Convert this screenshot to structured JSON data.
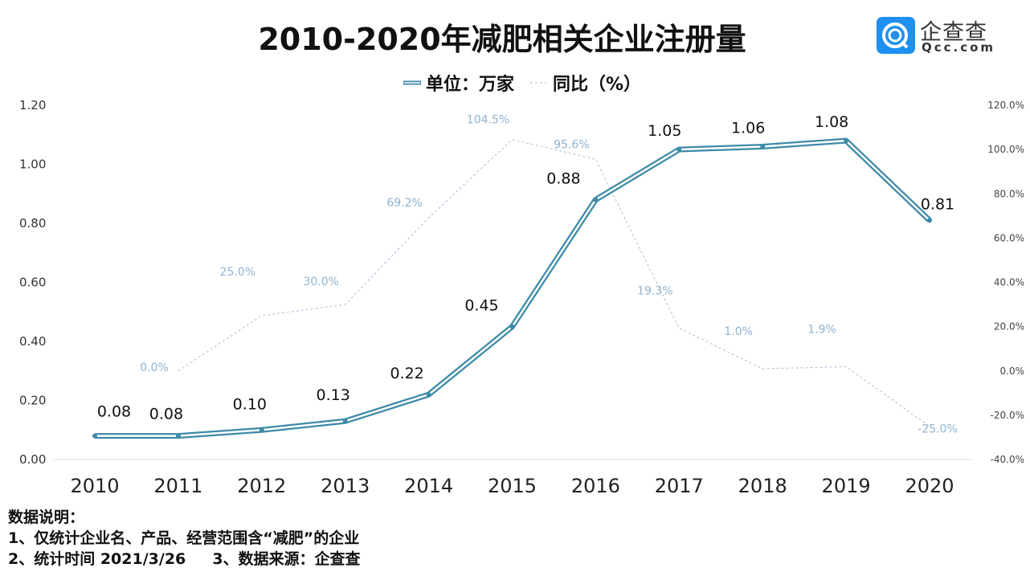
{
  "title": "2010-2020年减肥相关企业注册量",
  "logo": {
    "name": "企查查",
    "domain": "Qcc.com"
  },
  "colors": {
    "count": "#3d8aa8",
    "yoy": "#b8c6de",
    "yoy_label": "#8fb2d0"
  },
  "chart_data": {
    "type": "line",
    "categories": [
      "2010",
      "2011",
      "2012",
      "2013",
      "2014",
      "2015",
      "2016",
      "2017",
      "2018",
      "2019",
      "2020"
    ],
    "series": [
      {
        "name": "单位：万家",
        "axis": "left",
        "style": "double-solid",
        "values": [
          0.08,
          0.08,
          0.1,
          0.13,
          0.22,
          0.45,
          0.88,
          1.05,
          1.06,
          1.08,
          0.81
        ],
        "labels": [
          "0.08",
          "0.08",
          "0.10",
          "0.13",
          "0.22",
          "0.45",
          "0.88",
          "1.05",
          "1.06",
          "1.08",
          "0.81"
        ]
      },
      {
        "name": "同比（%）",
        "axis": "right",
        "style": "dashed",
        "values": [
          null,
          0.0,
          25.0,
          30.0,
          69.2,
          104.5,
          95.6,
          19.3,
          1.0,
          1.9,
          -25.0
        ],
        "labels": [
          "",
          "0.0%",
          "25.0%",
          "30.0%",
          "69.2%",
          "104.5%",
          "95.6%",
          "19.3%",
          "1.0%",
          "1.9%",
          "-25.0%"
        ]
      }
    ],
    "ylim": [
      0,
      1.2
    ],
    "yticks": [
      "0.00",
      "0.20",
      "0.40",
      "0.60",
      "0.80",
      "1.00",
      "1.20"
    ],
    "y2lim": [
      -40,
      120
    ],
    "y2ticks": [
      "-40.0%",
      "-20.0%",
      "0.0%",
      "20.0%",
      "40.0%",
      "60.0%",
      "80.0%",
      "100.0%",
      "120.0%"
    ],
    "grid": false,
    "legend": "top-center"
  },
  "notes": [
    "数据说明：",
    "1、仅统计企业名、产品、经营范围含“减肥”的企业",
    "2、统计时间 2021/3/26     3、数据来源：企查查"
  ]
}
